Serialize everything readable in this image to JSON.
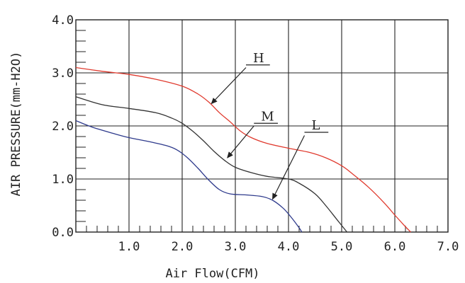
{
  "chart_data": {
    "type": "line",
    "xlabel": "Air Flow(CFM)",
    "ylabel": "AIR PRESSURE(mm-H2O)",
    "xlim": [
      0,
      7
    ],
    "ylim": [
      0,
      4
    ],
    "x_ticks": [
      1,
      2,
      3,
      4,
      5,
      6,
      7
    ],
    "x_tick_labels": [
      "1.0",
      "2.0",
      "3.0",
      "4.0",
      "5.0",
      "6.0",
      "7.0"
    ],
    "y_ticks": [
      0,
      1,
      2,
      3,
      4
    ],
    "y_tick_labels": [
      "0.0",
      "1.0",
      "2.0",
      "3.0",
      "4.0"
    ],
    "grid": true,
    "series": [
      {
        "name": "H",
        "color": "#e03a2e",
        "points": [
          [
            0,
            3.1
          ],
          [
            0.5,
            3.03
          ],
          [
            1.0,
            2.97
          ],
          [
            1.5,
            2.88
          ],
          [
            2.0,
            2.75
          ],
          [
            2.3,
            2.6
          ],
          [
            2.5,
            2.45
          ],
          [
            2.7,
            2.25
          ],
          [
            2.9,
            2.08
          ],
          [
            3.1,
            1.9
          ],
          [
            3.3,
            1.78
          ],
          [
            3.6,
            1.67
          ],
          [
            4.0,
            1.58
          ],
          [
            4.4,
            1.5
          ],
          [
            4.7,
            1.4
          ],
          [
            5.0,
            1.25
          ],
          [
            5.2,
            1.1
          ],
          [
            5.5,
            0.85
          ],
          [
            5.8,
            0.55
          ],
          [
            6.0,
            0.32
          ],
          [
            6.2,
            0.1
          ],
          [
            6.3,
            0.0
          ]
        ]
      },
      {
        "name": "M",
        "color": "#333333",
        "points": [
          [
            0,
            2.55
          ],
          [
            0.5,
            2.4
          ],
          [
            1.0,
            2.33
          ],
          [
            1.5,
            2.25
          ],
          [
            1.8,
            2.15
          ],
          [
            2.0,
            2.05
          ],
          [
            2.2,
            1.9
          ],
          [
            2.4,
            1.72
          ],
          [
            2.6,
            1.52
          ],
          [
            2.8,
            1.35
          ],
          [
            3.0,
            1.22
          ],
          [
            3.3,
            1.12
          ],
          [
            3.6,
            1.05
          ],
          [
            4.0,
            1.0
          ],
          [
            4.2,
            0.92
          ],
          [
            4.5,
            0.72
          ],
          [
            4.7,
            0.5
          ],
          [
            4.9,
            0.25
          ],
          [
            5.1,
            0.0
          ]
        ]
      },
      {
        "name": "L",
        "color": "#2e3a8c",
        "points": [
          [
            0,
            2.1
          ],
          [
            0.3,
            1.98
          ],
          [
            0.7,
            1.86
          ],
          [
            1.0,
            1.78
          ],
          [
            1.4,
            1.7
          ],
          [
            1.7,
            1.63
          ],
          [
            1.9,
            1.55
          ],
          [
            2.1,
            1.4
          ],
          [
            2.3,
            1.2
          ],
          [
            2.5,
            0.98
          ],
          [
            2.7,
            0.8
          ],
          [
            2.9,
            0.72
          ],
          [
            3.2,
            0.7
          ],
          [
            3.5,
            0.67
          ],
          [
            3.7,
            0.6
          ],
          [
            3.9,
            0.45
          ],
          [
            4.05,
            0.28
          ],
          [
            4.2,
            0.08
          ],
          [
            4.25,
            0.0
          ]
        ]
      }
    ],
    "annotations": [
      {
        "text": "H",
        "label_at": [
          3.2,
          3.15
        ],
        "line_to": [
          3.65,
          3.15
        ],
        "arrow_from": [
          3.2,
          3.1
        ],
        "arrow_to": [
          2.55,
          2.42
        ]
      },
      {
        "text": "M",
        "label_at": [
          3.35,
          2.05
        ],
        "line_to": [
          3.8,
          2.05
        ],
        "arrow_from": [
          3.35,
          2.0
        ],
        "arrow_to": [
          2.85,
          1.4
        ]
      },
      {
        "text": "L",
        "label_at": [
          4.3,
          1.88
        ],
        "line_to": [
          4.75,
          1.88
        ],
        "arrow_from": [
          4.3,
          1.82
        ],
        "arrow_to": [
          3.7,
          0.62
        ]
      }
    ]
  }
}
